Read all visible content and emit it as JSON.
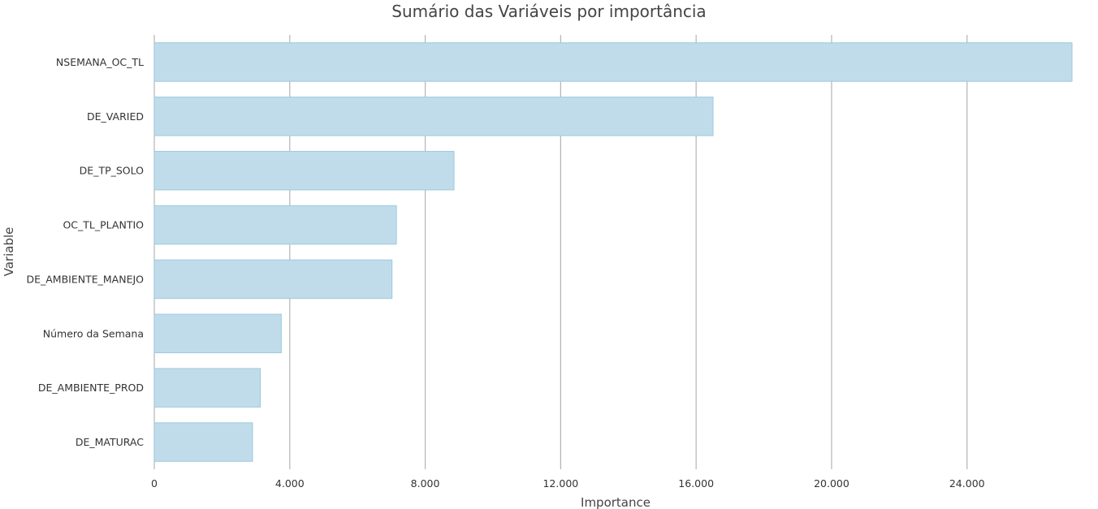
{
  "chart_data": {
    "type": "bar",
    "orientation": "horizontal",
    "title": "Sumário das Variáveis por importância",
    "xlabel": "Importance",
    "ylabel": "Variable",
    "categories": [
      "NSEMANA_OC_TL",
      "DE_VARIED",
      "DE_TP_SOLO",
      "OC_TL_PLANTIO",
      "DE_AMBIENTE_MANEJO",
      "Número da Semana",
      "DE_AMBIENTE_PROD",
      "DE_MATURAC"
    ],
    "values": [
      27100,
      16500,
      8850,
      7150,
      7020,
      3750,
      3130,
      2900
    ],
    "xlim": [
      0,
      27100
    ],
    "xticks": [
      0,
      4000,
      8000,
      12000,
      16000,
      20000,
      24000
    ],
    "xtick_labels": [
      "0",
      "4.000",
      "8.000",
      "12.000",
      "16.000",
      "20.000",
      "24.000"
    ],
    "grid": "vertical",
    "legend": "none",
    "colors": {
      "bar_fill": "#c0dcea",
      "bar_stroke": "#9ccadd",
      "grid": "#b3b3b3",
      "text": "#444444"
    }
  }
}
